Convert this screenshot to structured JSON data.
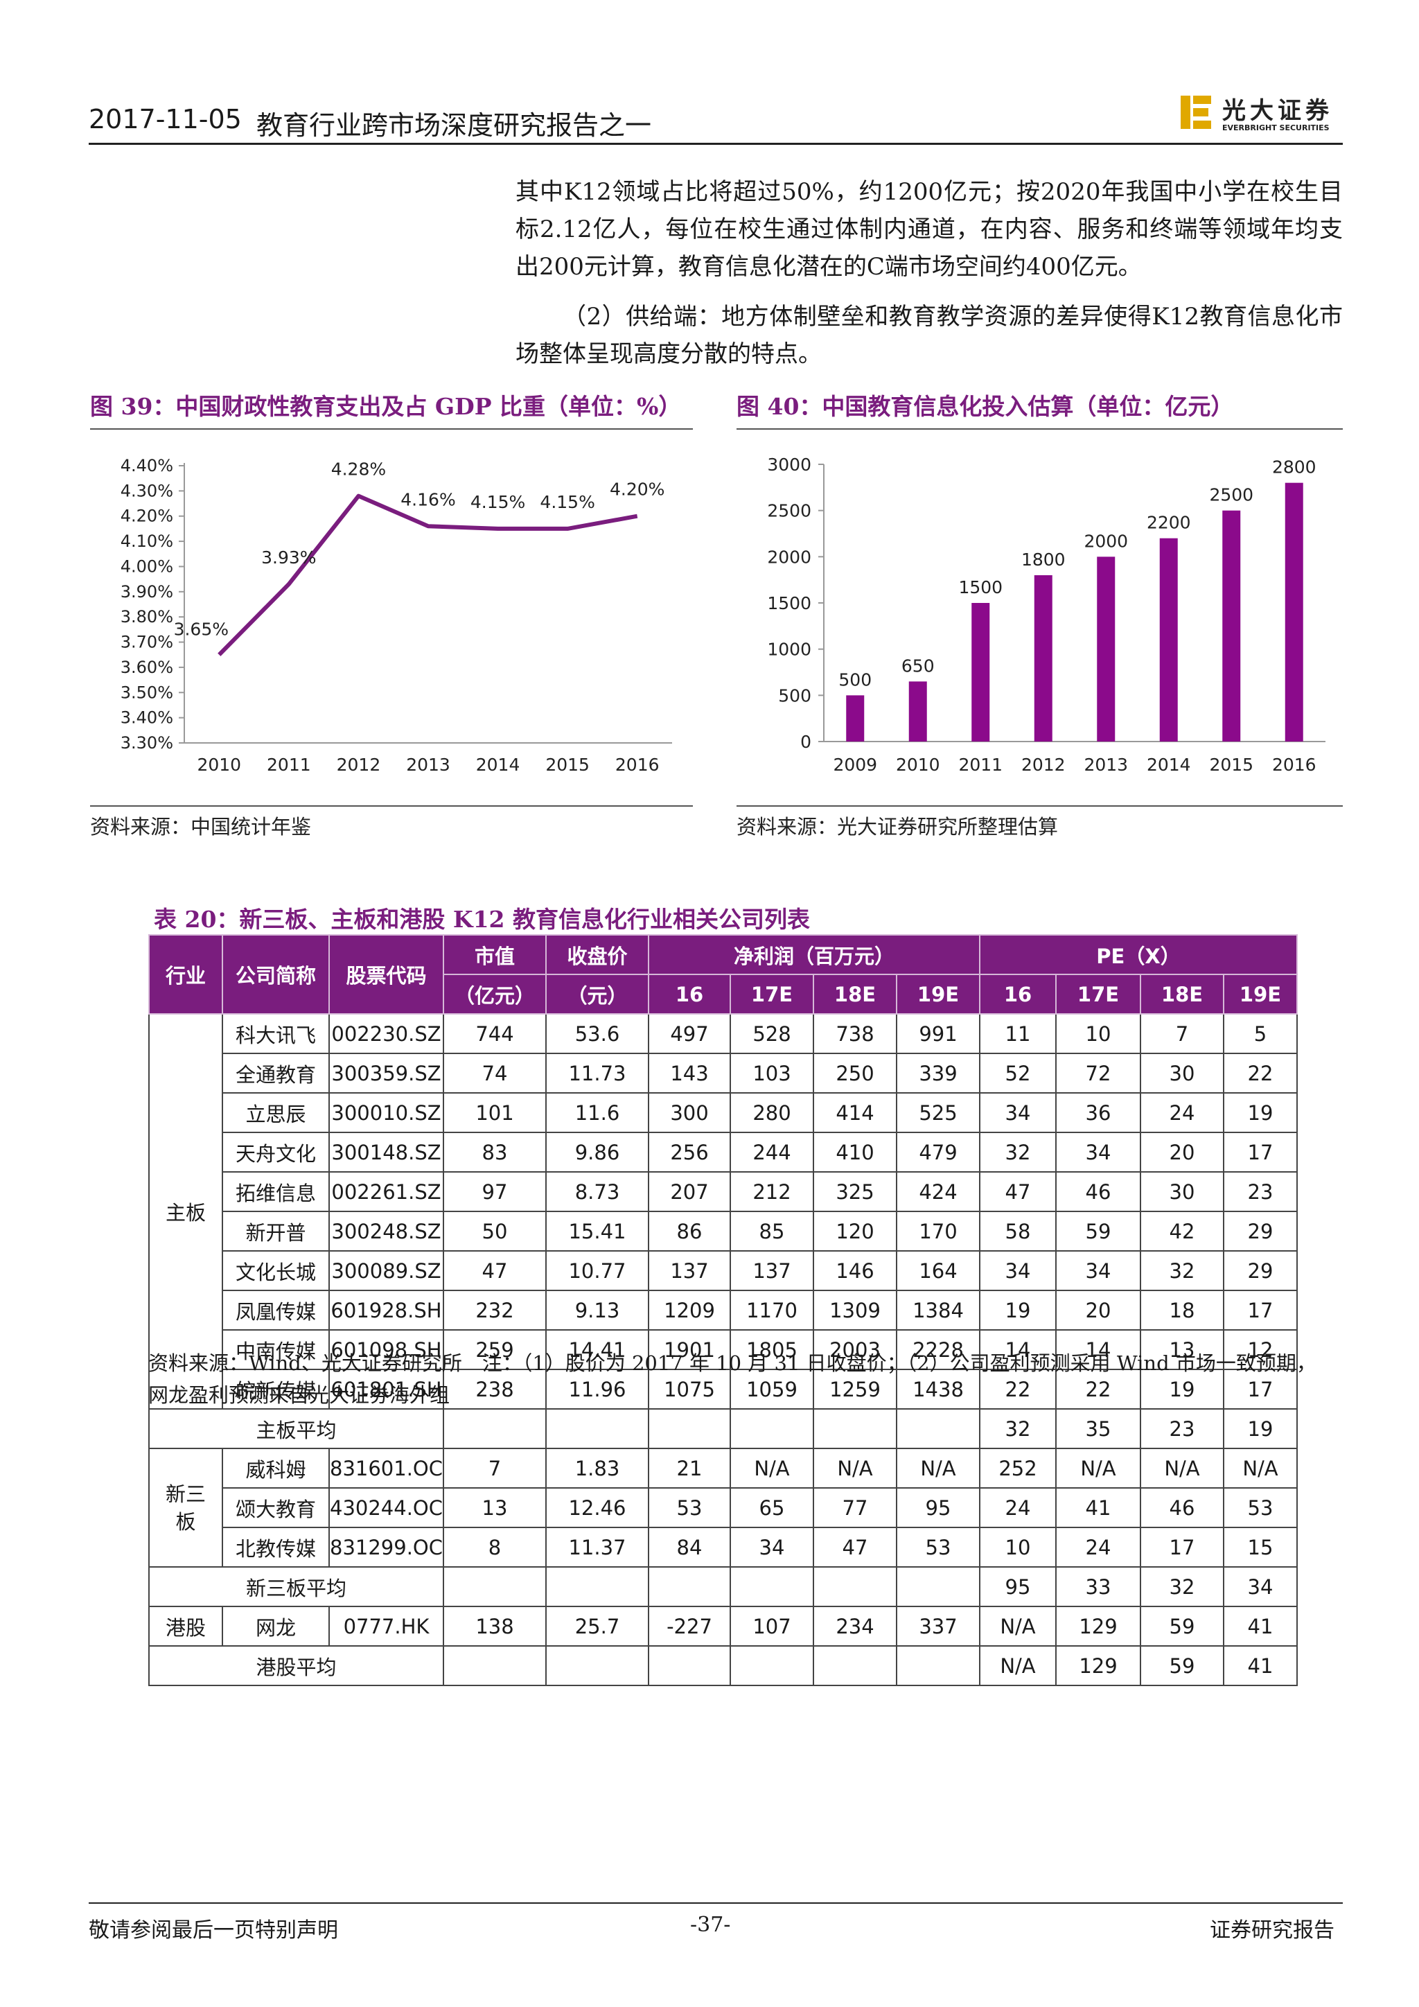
{
  "header": {
    "date": "2017-11-05",
    "title": "教育行业跨市场深度研究报告之一",
    "logo_cn": "光大证券",
    "logo_en": "EVERBRIGHT SECURITIES"
  },
  "body": {
    "p1": "其中K12领域占比将超过50%，约1200亿元；按2020年我国中小学在校生目标2.12亿人，每位在校生通过体制内通道，在内容、服务和终端等领域年均支出200元计算，教育信息化潜在的C端市场空间约400亿元。",
    "p2": "（2）供给端：地方体制壁垒和教育教学资源的差异使得K12教育信息化市场整体呈现高度分散的特点。"
  },
  "fig39": {
    "caption": "图 39：中国财政性教育支出及占 GDP 比重（单位：%）",
    "source": "资料来源：中国统计年鉴"
  },
  "fig40": {
    "caption": "图 40：中国教育信息化投入估算（单位：亿元）",
    "source": "资料来源：光大证券研究所整理估算"
  },
  "chart_data": [
    {
      "type": "line",
      "title": "中国财政性教育支出及占 GDP 比重（单位：%）",
      "x": [
        "2010",
        "2011",
        "2012",
        "2013",
        "2014",
        "2015",
        "2016"
      ],
      "values": [
        3.65,
        3.93,
        4.28,
        4.16,
        4.15,
        4.15,
        4.2
      ],
      "data_labels": [
        "3.65%",
        "3.93%",
        "4.28%",
        "4.16%",
        "4.15%",
        "4.15%",
        "4.20%"
      ],
      "yticks": [
        "3.30%",
        "3.40%",
        "3.50%",
        "3.60%",
        "3.70%",
        "3.80%",
        "3.90%",
        "4.00%",
        "4.10%",
        "4.20%",
        "4.30%",
        "4.40%"
      ],
      "ylim": [
        3.3,
        4.4
      ],
      "color": "#7a1d7e"
    },
    {
      "type": "bar",
      "title": "中国教育信息化投入估算（单位：亿元）",
      "categories": [
        "2009",
        "2010",
        "2011",
        "2012",
        "2013",
        "2014",
        "2015",
        "2016"
      ],
      "values": [
        500,
        650,
        1500,
        1800,
        2000,
        2200,
        2500,
        2800
      ],
      "yticks": [
        "0",
        "500",
        "1000",
        "1500",
        "2000",
        "2500",
        "3000"
      ],
      "ylim": [
        0,
        3000
      ],
      "color": "#8b0a8b"
    }
  ],
  "table": {
    "caption": "表 20：新三板、主板和港股 K12 教育信息化行业相关公司列表",
    "head": {
      "industry": "行业",
      "name": "公司简称",
      "code": "股票代码",
      "mktcap1": "市值",
      "mktcap2": "（亿元）",
      "price1": "收盘价",
      "price2": "（元）",
      "np": "净利润（百万元）",
      "pe": "PE（X）",
      "np_years": [
        "16",
        "17E",
        "18E",
        "19E"
      ],
      "pe_years": [
        "16",
        "17E",
        "18E",
        "19E"
      ]
    },
    "groups": [
      {
        "label": "主板",
        "rows": [
          [
            "科大讯飞",
            "002230.SZ",
            "744",
            "53.6",
            "497",
            "528",
            "738",
            "991",
            "11",
            "10",
            "7",
            "5"
          ],
          [
            "全通教育",
            "300359.SZ",
            "74",
            "11.73",
            "143",
            "103",
            "250",
            "339",
            "52",
            "72",
            "30",
            "22"
          ],
          [
            "立思辰",
            "300010.SZ",
            "101",
            "11.6",
            "300",
            "280",
            "414",
            "525",
            "34",
            "36",
            "24",
            "19"
          ],
          [
            "天舟文化",
            "300148.SZ",
            "83",
            "9.86",
            "256",
            "244",
            "410",
            "479",
            "32",
            "34",
            "20",
            "17"
          ],
          [
            "拓维信息",
            "002261.SZ",
            "97",
            "8.73",
            "207",
            "212",
            "325",
            "424",
            "47",
            "46",
            "30",
            "23"
          ],
          [
            "新开普",
            "300248.SZ",
            "50",
            "15.41",
            "86",
            "85",
            "120",
            "170",
            "58",
            "59",
            "42",
            "29"
          ],
          [
            "文化长城",
            "300089.SZ",
            "47",
            "10.77",
            "137",
            "137",
            "146",
            "164",
            "34",
            "34",
            "32",
            "29"
          ],
          [
            "凤凰传媒",
            "601928.SH",
            "232",
            "9.13",
            "1209",
            "1170",
            "1309",
            "1384",
            "19",
            "20",
            "18",
            "17"
          ],
          [
            "中南传媒",
            "601098.SH",
            "259",
            "14.41",
            "1901",
            "1805",
            "2003",
            "2228",
            "14",
            "14",
            "13",
            "12"
          ],
          [
            "皖新传媒",
            "601801.SH",
            "238",
            "11.96",
            "1075",
            "1059",
            "1259",
            "1438",
            "22",
            "22",
            "19",
            "17"
          ]
        ],
        "avg_label": "主板平均",
        "avg": [
          "32",
          "35",
          "23",
          "19"
        ]
      },
      {
        "label": "新三板",
        "rows": [
          [
            "威科姆",
            "831601.OC",
            "7",
            "1.83",
            "21",
            "N/A",
            "N/A",
            "N/A",
            "252",
            "N/A",
            "N/A",
            "N/A"
          ],
          [
            "颂大教育",
            "430244.OC",
            "13",
            "12.46",
            "53",
            "65",
            "77",
            "95",
            "24",
            "41",
            "46",
            "53"
          ],
          [
            "北教传媒",
            "831299.OC",
            "8",
            "11.37",
            "84",
            "34",
            "47",
            "53",
            "10",
            "24",
            "17",
            "15"
          ]
        ],
        "avg_label": "新三板平均",
        "avg": [
          "95",
          "33",
          "32",
          "34"
        ]
      },
      {
        "label": "港股",
        "rows": [
          [
            "网龙",
            "0777.HK",
            "138",
            "25.7",
            "-227",
            "107",
            "234",
            "337",
            "N/A",
            "129",
            "59",
            "41"
          ]
        ],
        "avg_label": "港股平均",
        "avg": [
          "N/A",
          "129",
          "59",
          "41"
        ]
      }
    ],
    "note_line1": "资料来源：Wind、光大证券研究所　注：（1）股价为 2017 年 10 月 31 日收盘价；（2）公司盈利预测采用 Wind 市场一致预期，",
    "note_line2": "网龙盈利预测来自光大证券海外组"
  },
  "footer": {
    "left": "敬请参阅最后一页特别声明",
    "page": "-37-",
    "right": "证券研究报告"
  }
}
